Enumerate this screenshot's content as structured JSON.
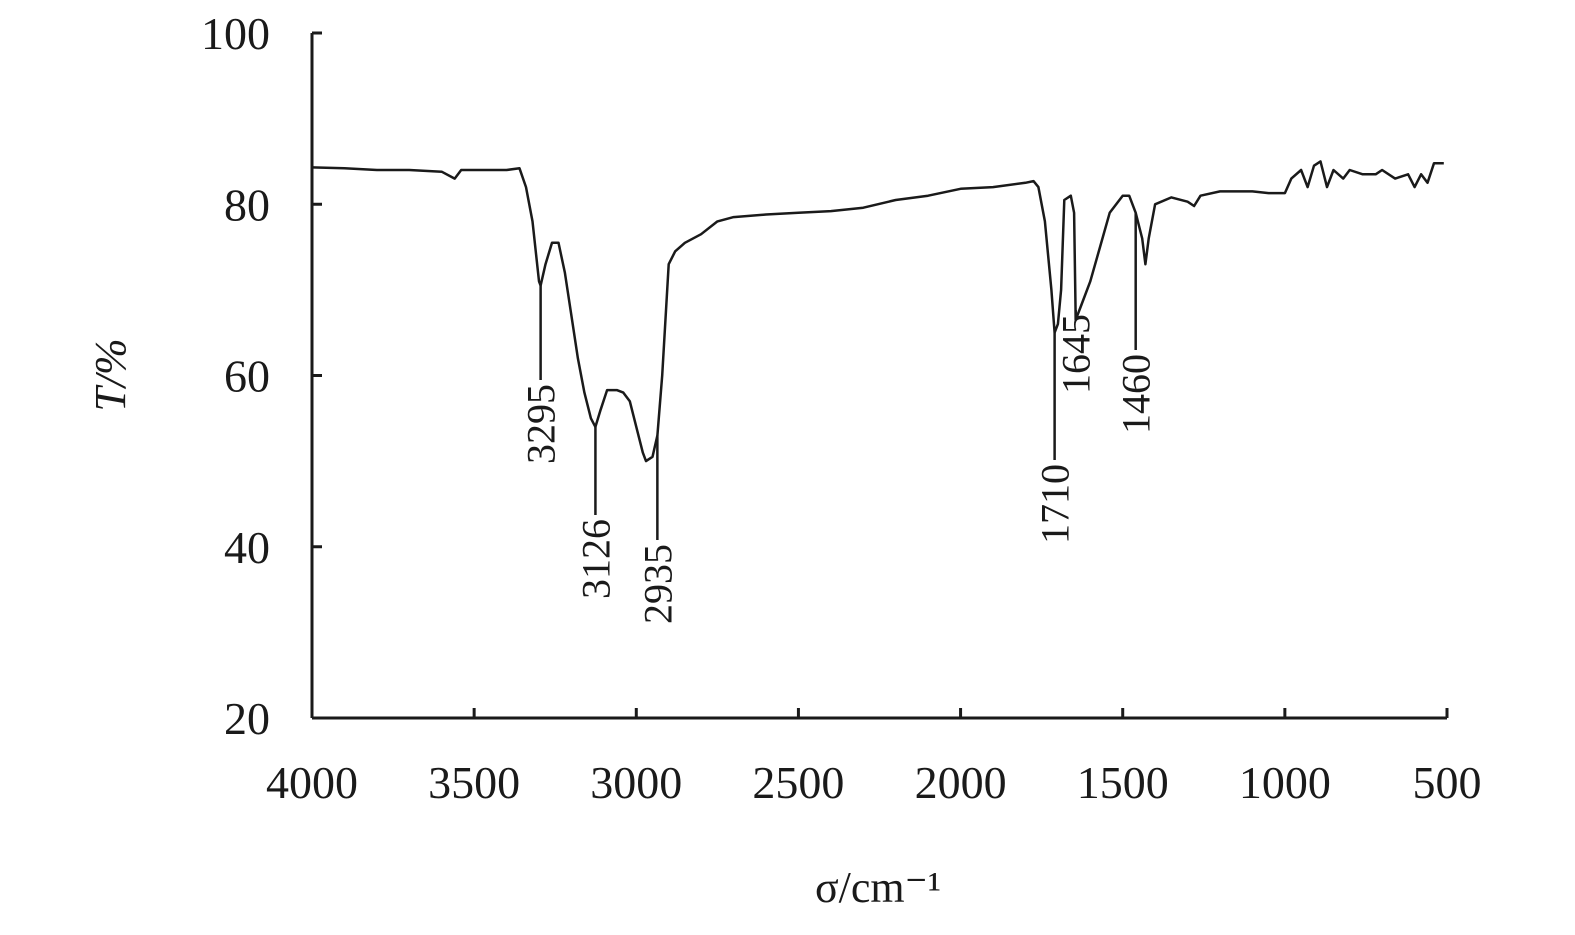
{
  "chart_data": {
    "type": "line",
    "x_label": "σ/cm⁻¹",
    "y_label": "T/%",
    "color": "#1a1a1a",
    "xlim": [
      4000,
      500
    ],
    "xticks": [
      4000,
      3500,
      3000,
      2500,
      2000,
      1500,
      1000,
      500
    ],
    "ylim": [
      20,
      100
    ],
    "yticks": [
      20,
      40,
      60,
      80,
      100
    ],
    "x": [
      4000,
      3900,
      3800,
      3700,
      3600,
      3560,
      3540,
      3400,
      3360,
      3340,
      3320,
      3300,
      3295,
      3280,
      3260,
      3240,
      3220,
      3200,
      3180,
      3160,
      3140,
      3126,
      3110,
      3090,
      3060,
      3040,
      3020,
      3000,
      2980,
      2970,
      2950,
      2935,
      2920,
      2900,
      2880,
      2850,
      2800,
      2750,
      2700,
      2600,
      2500,
      2400,
      2300,
      2200,
      2100,
      2000,
      1900,
      1800,
      1775,
      1760,
      1740,
      1720,
      1710,
      1700,
      1690,
      1680,
      1660,
      1650,
      1645,
      1630,
      1600,
      1570,
      1540,
      1500,
      1480,
      1460,
      1440,
      1430,
      1420,
      1400,
      1350,
      1300,
      1280,
      1260,
      1200,
      1100,
      1050,
      1000,
      980,
      950,
      930,
      910,
      890,
      870,
      850,
      820,
      800,
      760,
      720,
      700,
      660,
      620,
      600,
      580,
      560,
      540,
      510
    ],
    "values": [
      84.3,
      84.2,
      84.0,
      84.0,
      83.8,
      83.0,
      84.0,
      84.0,
      84.2,
      82.0,
      78.0,
      71.0,
      70.5,
      73.0,
      75.5,
      75.5,
      72.0,
      67.0,
      62.0,
      58.0,
      55.0,
      54.0,
      56.0,
      58.3,
      58.3,
      58.0,
      57.0,
      54.0,
      51.0,
      50.0,
      50.5,
      53.0,
      60.0,
      73.0,
      74.5,
      75.5,
      76.5,
      78.0,
      78.5,
      78.8,
      79.0,
      79.2,
      79.6,
      80.5,
      81.0,
      81.8,
      82.0,
      82.5,
      82.7,
      82.0,
      78.0,
      70.0,
      65.0,
      66.0,
      70.0,
      80.5,
      81.0,
      79.0,
      66.5,
      68.0,
      71.0,
      75.0,
      79.0,
      81.0,
      81.0,
      79.0,
      76.0,
      73.0,
      76.0,
      80.0,
      80.8,
      80.3,
      79.8,
      81.0,
      81.5,
      81.5,
      81.3,
      81.3,
      83.0,
      84.0,
      82.0,
      84.5,
      85.0,
      82.0,
      84.0,
      83.0,
      84.0,
      83.5,
      83.5,
      84.0,
      83.0,
      83.5,
      82.0,
      83.5,
      82.5,
      84.8,
      84.8
    ],
    "annotations": [
      3295,
      3126,
      2935,
      1710,
      1645,
      1460
    ]
  }
}
